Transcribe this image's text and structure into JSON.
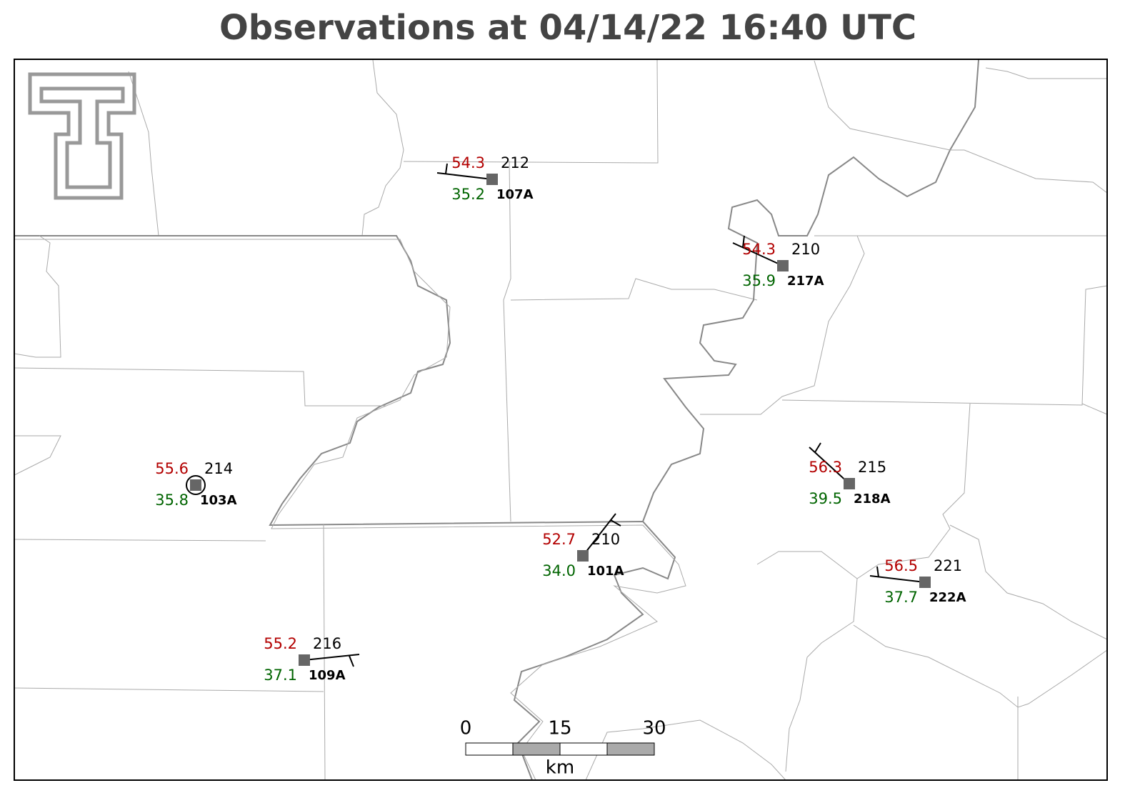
{
  "title": "Observations at 04/14/22 16:40 UTC",
  "stations": [
    {
      "id": "107A",
      "temperature": "54.3",
      "dewpoint": "35.2",
      "pressure": "212"
    },
    {
      "id": "217A",
      "temperature": "54.3",
      "dewpoint": "35.9",
      "pressure": "210"
    },
    {
      "id": "103A",
      "temperature": "55.6",
      "dewpoint": "35.8",
      "pressure": "214"
    },
    {
      "id": "218A",
      "temperature": "56.3",
      "dewpoint": "39.5",
      "pressure": "215"
    },
    {
      "id": "101A",
      "temperature": "52.7",
      "dewpoint": "34.0",
      "pressure": "210"
    },
    {
      "id": "222A",
      "temperature": "56.5",
      "dewpoint": "37.7",
      "pressure": "221"
    },
    {
      "id": "109A",
      "temperature": "55.2",
      "dewpoint": "37.1",
      "pressure": "216"
    }
  ],
  "scale_bar": {
    "ticks": [
      0,
      15,
      30
    ],
    "unit": "km"
  }
}
